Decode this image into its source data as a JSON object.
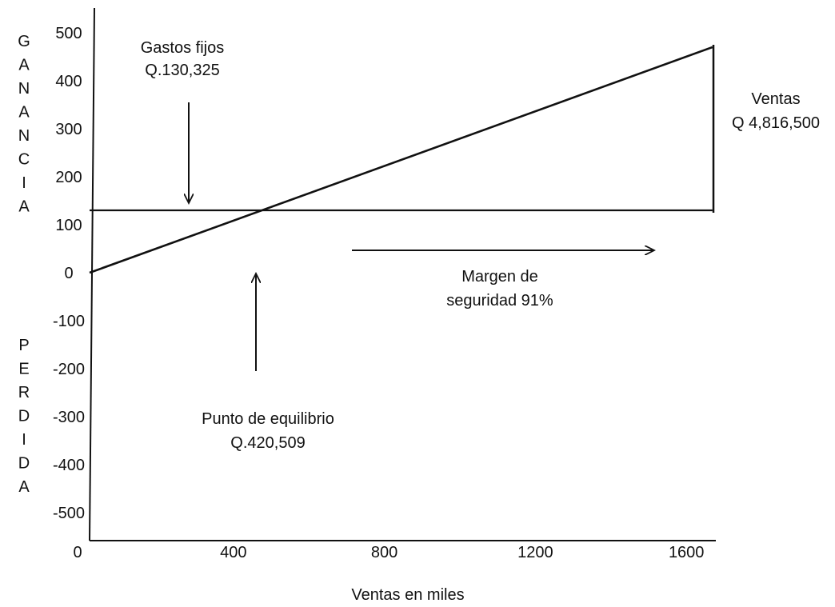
{
  "chart_data": {
    "type": "line",
    "xlabel": "Ventas en miles",
    "ylabel_top": [
      "G",
      "A",
      "N",
      "A",
      "N",
      "C",
      "I",
      "A"
    ],
    "ylabel_bottom": [
      "P",
      "E",
      "R",
      "D",
      "I",
      "D",
      "A"
    ],
    "x_ticks": [
      "0",
      "400",
      "800",
      "1200",
      "1600"
    ],
    "y_ticks": [
      "500",
      "400",
      "300",
      "200",
      "100",
      "0",
      "-100",
      "-200",
      "-300",
      "-400",
      "-500"
    ],
    "xlim": [
      0,
      1700
    ],
    "ylim": [
      -500,
      500
    ],
    "series": [
      {
        "values": [
          [
            0,
            0
          ],
          [
            1650,
            470
          ]
        ]
      },
      {
        "values": [
          [
            0,
            130
          ],
          [
            1650,
            130
          ]
        ]
      }
    ],
    "annotations": {
      "fixed_costs": [
        "Gastos fijos",
        "Q.130,325"
      ],
      "sales": [
        "Ventas",
        "Q 4,816,500"
      ],
      "margin": [
        "Margen de",
        "seguridad 91%"
      ],
      "breakeven": [
        "Punto de equilibrio",
        "Q.420,509"
      ]
    }
  }
}
